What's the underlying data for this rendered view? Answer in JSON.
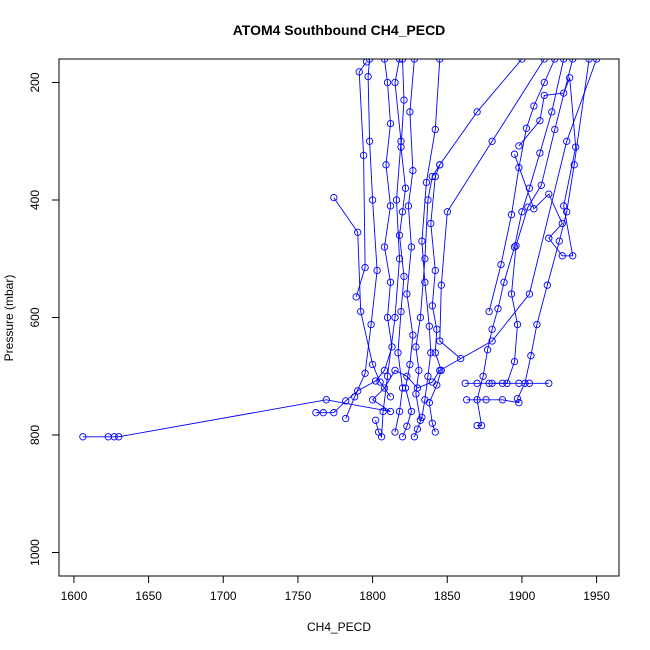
{
  "chart_data": {
    "type": "line",
    "title": "ATOM4 Southbound CH4_PECD",
    "xlabel": "CH4_PECD",
    "ylabel": "Pressure (mbar)",
    "xlim": [
      1590,
      1965
    ],
    "ylim": [
      1040,
      160
    ],
    "y_reversed": true,
    "x_ticks": [
      1600,
      1650,
      1700,
      1750,
      1800,
      1850,
      1900,
      1950
    ],
    "y_ticks": [
      200,
      400,
      600,
      800,
      1000
    ],
    "grid": false,
    "legend": "none",
    "colors": {
      "series": "#0000ff",
      "frame": "#000000",
      "background": "#ffffff"
    },
    "series": [
      {
        "values": [
          {
            "x": 1606,
            "y": 803
          },
          {
            "x": 1623,
            "y": 803
          },
          {
            "x": 1627,
            "y": 803
          },
          {
            "x": 1630,
            "y": 803
          },
          {
            "x": 1769,
            "y": 740
          },
          {
            "x": 1812,
            "y": 760
          },
          {
            "x": 1800,
            "y": 740
          },
          {
            "x": 1808,
            "y": 720
          },
          {
            "x": 1815,
            "y": 690
          },
          {
            "x": 1823,
            "y": 700
          },
          {
            "x": 1830,
            "y": 720
          },
          {
            "x": 1840,
            "y": 710
          },
          {
            "x": 1845,
            "y": 690
          },
          {
            "x": 1880,
            "y": 640
          },
          {
            "x": 1905,
            "y": 560
          },
          {
            "x": 1930,
            "y": 300
          },
          {
            "x": 1950,
            "y": 160
          }
        ]
      },
      {
        "values": [
          {
            "x": 1762,
            "y": 762
          },
          {
            "x": 1767,
            "y": 762
          },
          {
            "x": 1774,
            "y": 762
          },
          {
            "x": 1782,
            "y": 742
          },
          {
            "x": 1790,
            "y": 725
          },
          {
            "x": 1802,
            "y": 708
          },
          {
            "x": 1808,
            "y": 690
          },
          {
            "x": 1813,
            "y": 650
          },
          {
            "x": 1810,
            "y": 600
          },
          {
            "x": 1812,
            "y": 540
          },
          {
            "x": 1808,
            "y": 480
          },
          {
            "x": 1812,
            "y": 410
          },
          {
            "x": 1809,
            "y": 340
          },
          {
            "x": 1812,
            "y": 270
          },
          {
            "x": 1810,
            "y": 200
          },
          {
            "x": 1808,
            "y": 160
          }
        ]
      },
      {
        "values": [
          {
            "x": 1782,
            "y": 772
          },
          {
            "x": 1788,
            "y": 735
          },
          {
            "x": 1795,
            "y": 695
          },
          {
            "x": 1799,
            "y": 612
          },
          {
            "x": 1803,
            "y": 520
          },
          {
            "x": 1800,
            "y": 400
          },
          {
            "x": 1798,
            "y": 300
          },
          {
            "x": 1797,
            "y": 190
          },
          {
            "x": 1798,
            "y": 160
          }
        ]
      },
      {
        "values": [
          {
            "x": 1774,
            "y": 396
          },
          {
            "x": 1790,
            "y": 455
          },
          {
            "x": 1792,
            "y": 590
          },
          {
            "x": 1800,
            "y": 680
          },
          {
            "x": 1805,
            "y": 710
          },
          {
            "x": 1812,
            "y": 735
          }
        ]
      },
      {
        "values": [
          {
            "x": 1789,
            "y": 565
          },
          {
            "x": 1795,
            "y": 515
          },
          {
            "x": 1794,
            "y": 324
          },
          {
            "x": 1791,
            "y": 182
          },
          {
            "x": 1796,
            "y": 165
          }
        ]
      },
      {
        "values": [
          {
            "x": 1802,
            "y": 775
          },
          {
            "x": 1804,
            "y": 795
          },
          {
            "x": 1806,
            "y": 803
          },
          {
            "x": 1807,
            "y": 760
          },
          {
            "x": 1810,
            "y": 700
          },
          {
            "x": 1815,
            "y": 600
          },
          {
            "x": 1818,
            "y": 500
          },
          {
            "x": 1816,
            "y": 400
          },
          {
            "x": 1819,
            "y": 300
          },
          {
            "x": 1815,
            "y": 200
          },
          {
            "x": 1818,
            "y": 160
          }
        ]
      },
      {
        "values": [
          {
            "x": 1820,
            "y": 803
          },
          {
            "x": 1823,
            "y": 785
          },
          {
            "x": 1826,
            "y": 760
          },
          {
            "x": 1822,
            "y": 720
          },
          {
            "x": 1825,
            "y": 680
          },
          {
            "x": 1827,
            "y": 630
          },
          {
            "x": 1823,
            "y": 560
          },
          {
            "x": 1826,
            "y": 480
          },
          {
            "x": 1824,
            "y": 410
          },
          {
            "x": 1827,
            "y": 350
          },
          {
            "x": 1825,
            "y": 250
          },
          {
            "x": 1828,
            "y": 160
          }
        ]
      },
      {
        "values": [
          {
            "x": 1828,
            "y": 803
          },
          {
            "x": 1830,
            "y": 790
          },
          {
            "x": 1833,
            "y": 770
          },
          {
            "x": 1835,
            "y": 740
          },
          {
            "x": 1837,
            "y": 700
          },
          {
            "x": 1839,
            "y": 660
          },
          {
            "x": 1838,
            "y": 615
          },
          {
            "x": 1835,
            "y": 540
          },
          {
            "x": 1833,
            "y": 470
          },
          {
            "x": 1836,
            "y": 370
          },
          {
            "x": 1842,
            "y": 280
          },
          {
            "x": 1845,
            "y": 160
          }
        ]
      },
      {
        "values": [
          {
            "x": 1842,
            "y": 795
          },
          {
            "x": 1840,
            "y": 780
          },
          {
            "x": 1838,
            "y": 745
          },
          {
            "x": 1843,
            "y": 715
          },
          {
            "x": 1846,
            "y": 690
          },
          {
            "x": 1842,
            "y": 660
          },
          {
            "x": 1843,
            "y": 620
          },
          {
            "x": 1840,
            "y": 580
          },
          {
            "x": 1842,
            "y": 520
          },
          {
            "x": 1839,
            "y": 440
          },
          {
            "x": 1842,
            "y": 360
          },
          {
            "x": 1845,
            "y": 340
          }
        ]
      },
      {
        "values": [
          {
            "x": 1815,
            "y": 795
          },
          {
            "x": 1818,
            "y": 760
          },
          {
            "x": 1820,
            "y": 720
          },
          {
            "x": 1817,
            "y": 660
          },
          {
            "x": 1819,
            "y": 590
          },
          {
            "x": 1821,
            "y": 530
          },
          {
            "x": 1818,
            "y": 460
          },
          {
            "x": 1820,
            "y": 420
          },
          {
            "x": 1822,
            "y": 380
          },
          {
            "x": 1819,
            "y": 310
          },
          {
            "x": 1821,
            "y": 230
          },
          {
            "x": 1820,
            "y": 160
          }
        ]
      },
      {
        "values": [
          {
            "x": 1832,
            "y": 775
          },
          {
            "x": 1829,
            "y": 730
          },
          {
            "x": 1831,
            "y": 690
          },
          {
            "x": 1829,
            "y": 650
          },
          {
            "x": 1832,
            "y": 600
          },
          {
            "x": 1835,
            "y": 500
          },
          {
            "x": 1837,
            "y": 400
          },
          {
            "x": 1840,
            "y": 360
          },
          {
            "x": 1845,
            "y": 340
          },
          {
            "x": 1870,
            "y": 250
          },
          {
            "x": 1900,
            "y": 160
          }
        ]
      },
      {
        "values": [
          {
            "x": 1859,
            "y": 670
          },
          {
            "x": 1845,
            "y": 640
          },
          {
            "x": 1846,
            "y": 545
          },
          {
            "x": 1850,
            "y": 420
          },
          {
            "x": 1880,
            "y": 300
          },
          {
            "x": 1915,
            "y": 160
          }
        ]
      },
      {
        "values": [
          {
            "x": 1870,
            "y": 784
          },
          {
            "x": 1873,
            "y": 784
          },
          {
            "x": 1870,
            "y": 740
          },
          {
            "x": 1874,
            "y": 700
          },
          {
            "x": 1877,
            "y": 655
          },
          {
            "x": 1880,
            "y": 620
          },
          {
            "x": 1884,
            "y": 585
          },
          {
            "x": 1888,
            "y": 540
          },
          {
            "x": 1895,
            "y": 480
          },
          {
            "x": 1900,
            "y": 420
          },
          {
            "x": 1905,
            "y": 380
          },
          {
            "x": 1912,
            "y": 320
          },
          {
            "x": 1920,
            "y": 250
          },
          {
            "x": 1928,
            "y": 160
          }
        ]
      },
      {
        "values": [
          {
            "x": 1862,
            "y": 712
          },
          {
            "x": 1870,
            "y": 712
          },
          {
            "x": 1878,
            "y": 712
          },
          {
            "x": 1887,
            "y": 712
          },
          {
            "x": 1898,
            "y": 712
          },
          {
            "x": 1905,
            "y": 712
          },
          {
            "x": 1918,
            "y": 712
          }
        ]
      },
      {
        "values": [
          {
            "x": 1863,
            "y": 740
          },
          {
            "x": 1876,
            "y": 740
          },
          {
            "x": 1887,
            "y": 740
          },
          {
            "x": 1898,
            "y": 745
          },
          {
            "x": 1897,
            "y": 738
          },
          {
            "x": 1902,
            "y": 712
          },
          {
            "x": 1906,
            "y": 665
          },
          {
            "x": 1910,
            "y": 612
          },
          {
            "x": 1917,
            "y": 545
          },
          {
            "x": 1925,
            "y": 470
          },
          {
            "x": 1930,
            "y": 420
          },
          {
            "x": 1935,
            "y": 340
          },
          {
            "x": 1945,
            "y": 160
          }
        ]
      },
      {
        "values": [
          {
            "x": 1878,
            "y": 590
          },
          {
            "x": 1886,
            "y": 510
          },
          {
            "x": 1893,
            "y": 425
          },
          {
            "x": 1898,
            "y": 345
          },
          {
            "x": 1903,
            "y": 278
          },
          {
            "x": 1908,
            "y": 240
          },
          {
            "x": 1915,
            "y": 200
          },
          {
            "x": 1922,
            "y": 160
          }
        ]
      },
      {
        "values": [
          {
            "x": 1895,
            "y": 322
          },
          {
            "x": 1908,
            "y": 415
          },
          {
            "x": 1918,
            "y": 390
          },
          {
            "x": 1927,
            "y": 440
          },
          {
            "x": 1918,
            "y": 465
          },
          {
            "x": 1927,
            "y": 495
          },
          {
            "x": 1934,
            "y": 495
          },
          {
            "x": 1928,
            "y": 410
          },
          {
            "x": 1936,
            "y": 310
          },
          {
            "x": 1932,
            "y": 192
          },
          {
            "x": 1928,
            "y": 218
          },
          {
            "x": 1915,
            "y": 222
          },
          {
            "x": 1912,
            "y": 265
          },
          {
            "x": 1898,
            "y": 308
          }
        ]
      },
      {
        "values": [
          {
            "x": 1880,
            "y": 712
          },
          {
            "x": 1890,
            "y": 712
          },
          {
            "x": 1895,
            "y": 675
          },
          {
            "x": 1897,
            "y": 612
          },
          {
            "x": 1893,
            "y": 560
          },
          {
            "x": 1896,
            "y": 478
          },
          {
            "x": 1904,
            "y": 412
          },
          {
            "x": 1913,
            "y": 375
          },
          {
            "x": 1922,
            "y": 280
          },
          {
            "x": 1934,
            "y": 160
          }
        ]
      }
    ]
  }
}
